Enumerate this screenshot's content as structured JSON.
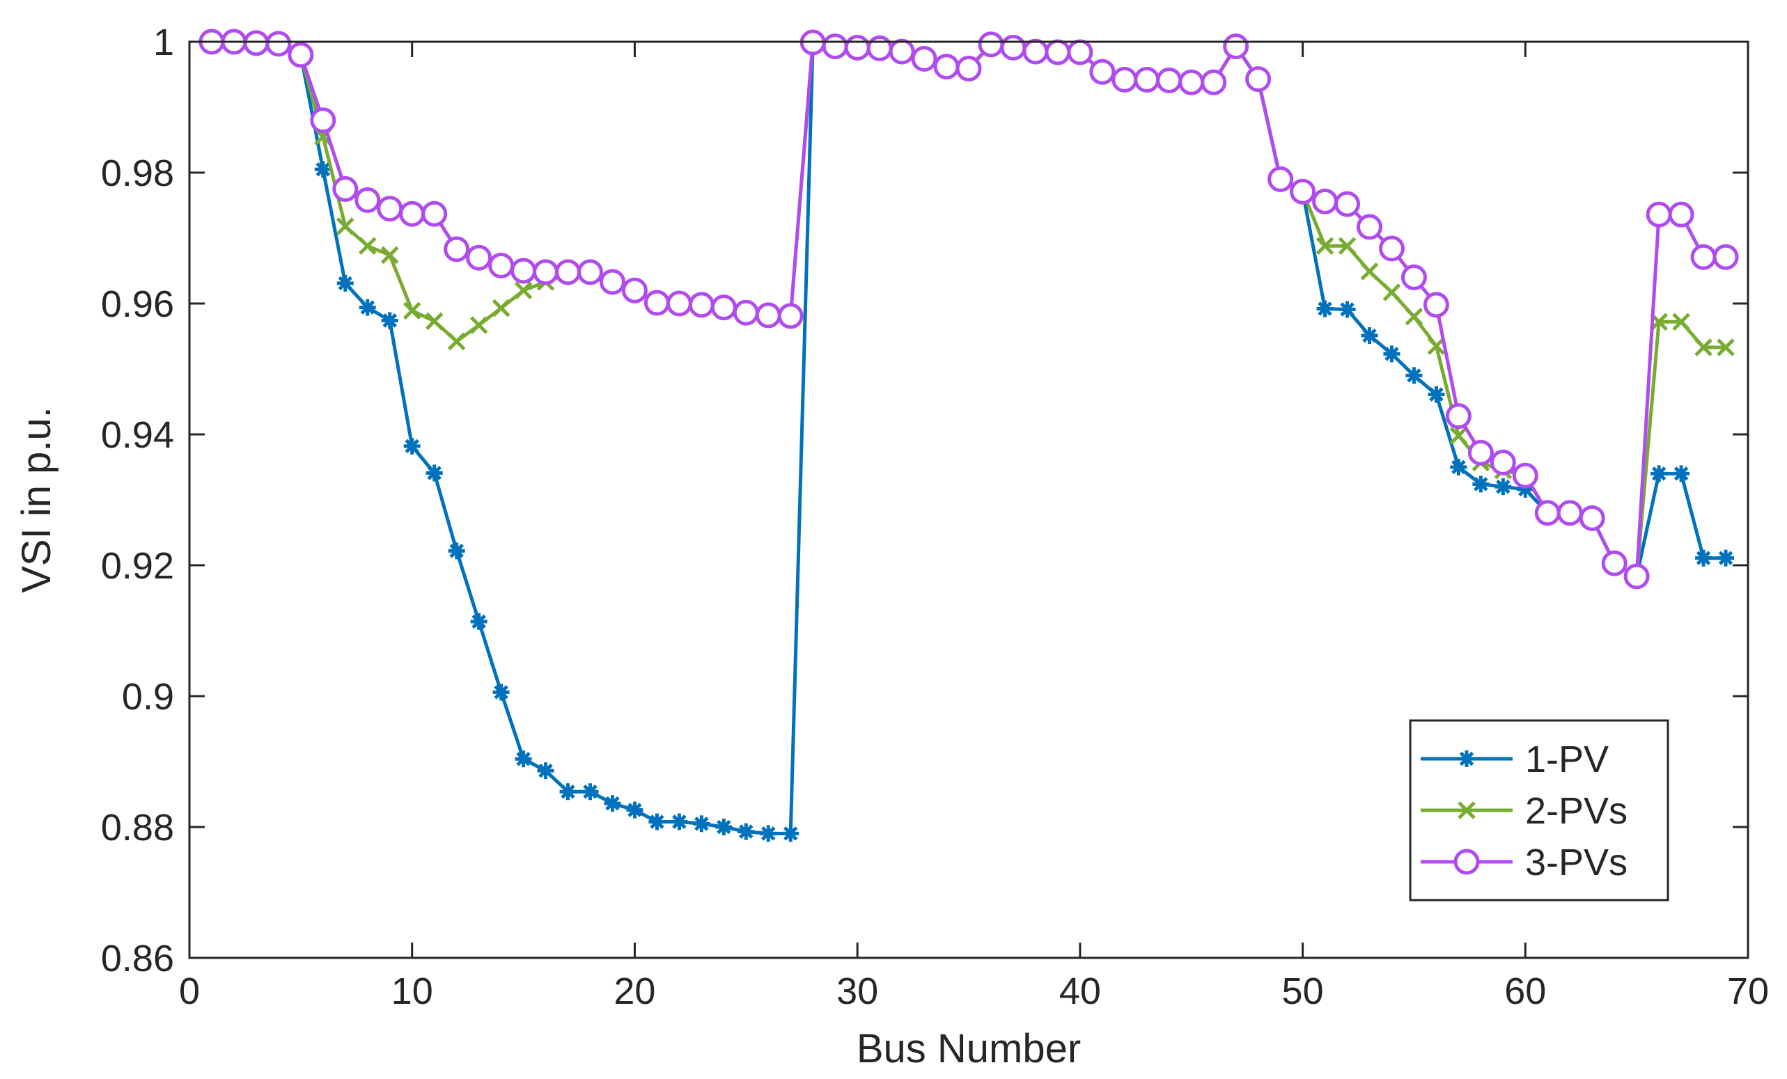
{
  "chart_data": {
    "type": "line",
    "title": "",
    "xlabel": "Bus Number",
    "ylabel": "VSI in p.u.",
    "xlim": [
      0,
      70
    ],
    "ylim": [
      0.86,
      1
    ],
    "xticks": [
      0,
      10,
      20,
      30,
      40,
      50,
      60,
      70
    ],
    "yticks": [
      0.86,
      0.88,
      0.9,
      0.92,
      0.94,
      0.96,
      0.98,
      1
    ],
    "xtick_labels": [
      "0",
      "10",
      "20",
      "30",
      "40",
      "50",
      "60",
      "70"
    ],
    "ytick_labels": [
      "0.86",
      "0.88",
      "0.9",
      "0.92",
      "0.94",
      "0.96",
      "0.98",
      "1"
    ],
    "grid": false,
    "box": true,
    "legend_position": "bottom-right",
    "x": [
      1,
      2,
      3,
      4,
      5,
      6,
      7,
      8,
      9,
      10,
      11,
      12,
      13,
      14,
      15,
      16,
      17,
      18,
      19,
      20,
      21,
      22,
      23,
      24,
      25,
      26,
      27,
      28,
      29,
      30,
      31,
      32,
      33,
      34,
      35,
      36,
      37,
      38,
      39,
      40,
      41,
      42,
      43,
      44,
      45,
      46,
      47,
      48,
      49,
      50,
      51,
      52,
      53,
      54,
      55,
      56,
      57,
      58,
      59,
      60,
      61,
      62,
      63,
      64,
      65,
      66,
      67,
      68,
      69
    ],
    "series": [
      {
        "name": "1-PV",
        "color": "#0072BD",
        "marker": "asterisk",
        "values": [
          1.0,
          1.0,
          0.9998,
          0.9997,
          0.998,
          0.9805,
          0.9631,
          0.9594,
          0.9574,
          0.9382,
          0.9341,
          0.9222,
          0.9114,
          0.9006,
          0.8904,
          0.8886,
          0.8854,
          0.8854,
          0.8836,
          0.8826,
          0.8808,
          0.8808,
          0.8805,
          0.88,
          0.8793,
          0.879,
          0.879,
          0.9999,
          0.9993,
          0.9991,
          0.999,
          0.9985,
          0.9974,
          0.9962,
          0.9959,
          0.9996,
          0.9991,
          0.9985,
          0.9984,
          0.9984,
          0.9954,
          0.9942,
          0.9942,
          0.9941,
          0.9938,
          0.9938,
          0.9993,
          0.9943,
          0.979,
          0.9771,
          0.9592,
          0.9591,
          0.9551,
          0.9523,
          0.949,
          0.9461,
          0.935,
          0.9324,
          0.932,
          0.9316,
          0.928,
          0.928,
          0.9272,
          0.9203,
          0.9183,
          0.934,
          0.934,
          0.9211,
          0.9211
        ]
      },
      {
        "name": "2-PVs",
        "color": "#77AC30",
        "marker": "x",
        "values": [
          1.0,
          1.0,
          0.9998,
          0.9997,
          0.998,
          0.9855,
          0.9718,
          0.9688,
          0.9674,
          0.9589,
          0.9573,
          0.9542,
          0.9567,
          0.9593,
          0.962,
          0.9633,
          0.9646,
          0.9649,
          0.9633,
          0.962,
          0.9601,
          0.96,
          0.9598,
          0.9594,
          0.9586,
          0.9582,
          0.9581,
          0.9999,
          0.9993,
          0.9991,
          0.999,
          0.9985,
          0.9974,
          0.9962,
          0.9959,
          0.9996,
          0.9991,
          0.9985,
          0.9984,
          0.9984,
          0.9954,
          0.9942,
          0.9942,
          0.9941,
          0.9938,
          0.9938,
          0.9993,
          0.9943,
          0.979,
          0.9771,
          0.9688,
          0.9688,
          0.9649,
          0.9617,
          0.958,
          0.9535,
          0.9398,
          0.9357,
          0.9345,
          0.9337,
          0.928,
          0.928,
          0.9272,
          0.9203,
          0.9183,
          0.9572,
          0.9572,
          0.9533,
          0.9533
        ]
      },
      {
        "name": "3-PVs",
        "color": "#B04BF0",
        "marker": "circle",
        "values": [
          1.0,
          1.0,
          0.9998,
          0.9997,
          0.998,
          0.988,
          0.9775,
          0.9758,
          0.9745,
          0.9737,
          0.9737,
          0.9683,
          0.967,
          0.9658,
          0.965,
          0.9648,
          0.9648,
          0.9648,
          0.9633,
          0.962,
          0.9601,
          0.96,
          0.9598,
          0.9594,
          0.9586,
          0.9582,
          0.9581,
          0.9999,
          0.9993,
          0.9991,
          0.999,
          0.9985,
          0.9974,
          0.9962,
          0.9959,
          0.9996,
          0.9991,
          0.9985,
          0.9984,
          0.9984,
          0.9954,
          0.9942,
          0.9942,
          0.9941,
          0.9938,
          0.9938,
          0.9993,
          0.9943,
          0.979,
          0.9771,
          0.9756,
          0.9752,
          0.9717,
          0.9684,
          0.964,
          0.9598,
          0.9428,
          0.9372,
          0.9357,
          0.9337,
          0.928,
          0.928,
          0.9272,
          0.9203,
          0.9183,
          0.9736,
          0.9736,
          0.9671,
          0.9671
        ]
      }
    ]
  }
}
